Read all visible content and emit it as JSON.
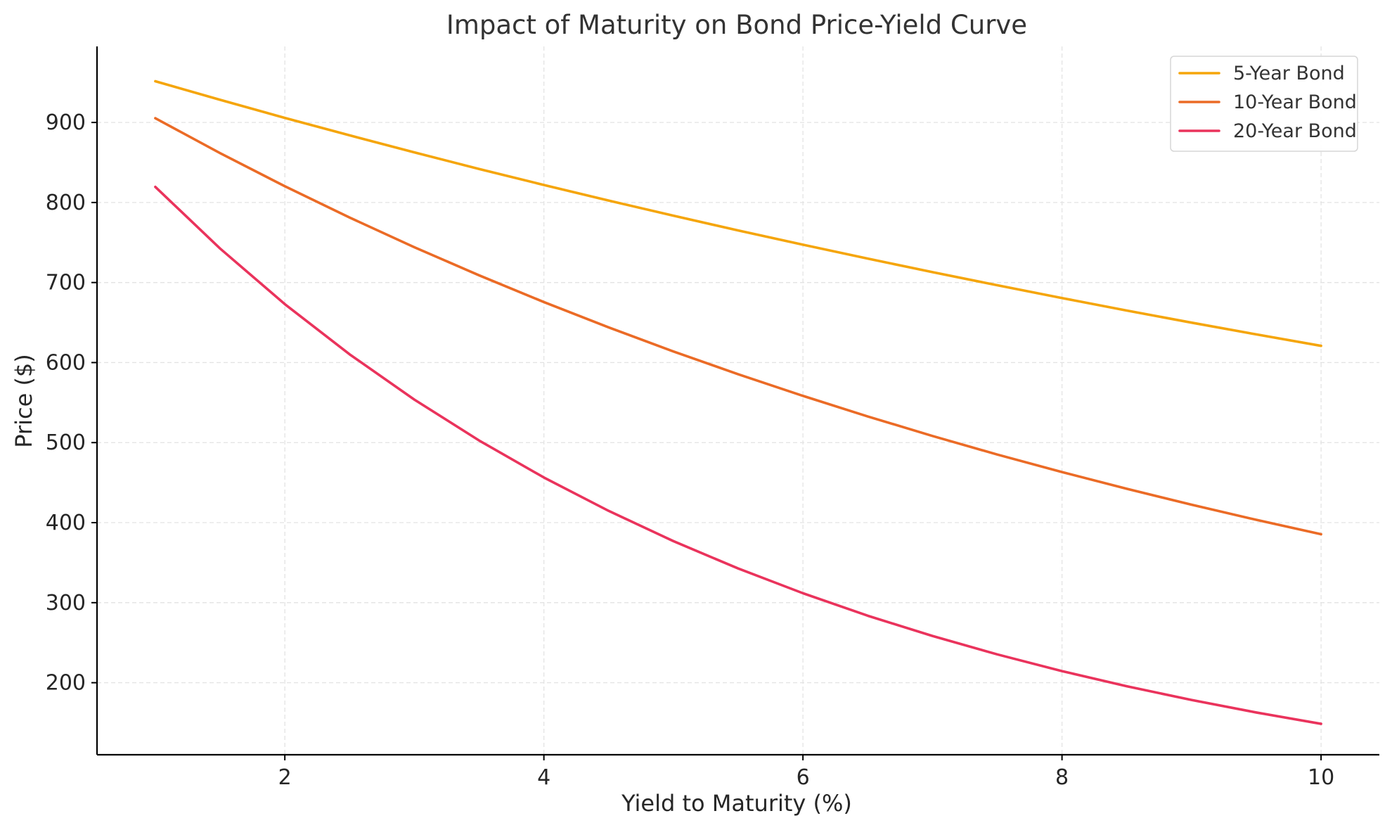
{
  "chart_data": {
    "type": "line",
    "title": "Impact of Maturity on Bond Price-Yield Curve",
    "xlabel": "Yield to Maturity (%)",
    "ylabel": "Price ($)",
    "xlim": [
      0.55,
      10.45
    ],
    "ylim": [
      110,
      995
    ],
    "xticks": [
      2,
      4,
      6,
      8,
      10
    ],
    "yticks": [
      200,
      300,
      400,
      500,
      600,
      700,
      800,
      900
    ],
    "grid": true,
    "legend_position": "top-right",
    "x": [
      1,
      1.5,
      2,
      2.5,
      3,
      3.5,
      4,
      4.5,
      5,
      5.5,
      6,
      6.5,
      7,
      7.5,
      8,
      8.5,
      9,
      9.5,
      10
    ],
    "series": [
      {
        "name": "5-Year Bond",
        "color": "#f5a50a",
        "values": [
          951.5,
          928.3,
          905.7,
          883.9,
          862.6,
          841.9,
          821.9,
          802.4,
          783.5,
          765.1,
          747.3,
          729.9,
          713.0,
          696.6,
          680.6,
          665.0,
          649.9,
          635.2,
          620.9
        ]
      },
      {
        "name": "10-Year Bond",
        "color": "#eb6b26",
        "values": [
          905.3,
          861.7,
          820.3,
          781.2,
          744.1,
          709.0,
          675.6,
          644.0,
          613.9,
          585.4,
          558.4,
          532.7,
          508.3,
          485.1,
          463.2,
          442.3,
          422.4,
          403.5,
          385.5
        ]
      },
      {
        "name": "20-Year Bond",
        "color": "#ea335c",
        "values": [
          819.5,
          742.5,
          673.0,
          610.3,
          553.7,
          502.6,
          456.4,
          414.7,
          376.9,
          342.7,
          311.8,
          283.7,
          258.4,
          235.4,
          214.5,
          195.6,
          178.4,
          162.8,
          148.6
        ]
      }
    ]
  }
}
